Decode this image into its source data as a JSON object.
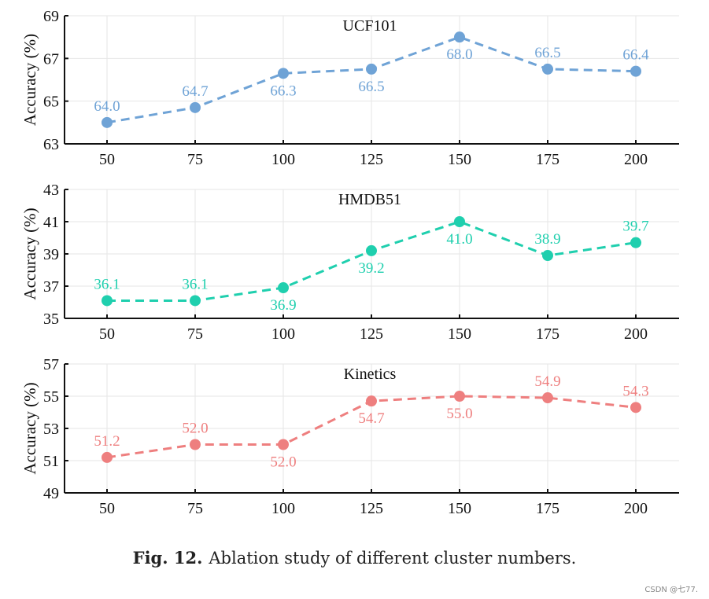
{
  "caption": {
    "label": "Fig. 12.",
    "text": "Ablation study of different cluster numbers."
  },
  "watermark": "CSDN @七77.",
  "chart_data": [
    {
      "type": "line",
      "title": "UCF101",
      "ylabel": "Accuracy (%)",
      "xlabel": "",
      "categories": [
        "50",
        "75",
        "100",
        "125",
        "150",
        "175",
        "200"
      ],
      "series": [
        {
          "name": "UCF101",
          "values": [
            64.0,
            64.7,
            66.3,
            66.5,
            68.0,
            66.5,
            66.4
          ]
        }
      ],
      "labels": [
        "64.0",
        "64.7",
        "66.3",
        "66.5",
        "68.0",
        "66.5",
        "66.4"
      ],
      "label_pos": [
        "above",
        "above",
        "below",
        "below",
        "below",
        "above",
        "above"
      ],
      "ylim": [
        63,
        69
      ],
      "yticks": [
        "63",
        "65",
        "67",
        "69"
      ],
      "color": "#6fa3d6",
      "grid": true
    },
    {
      "type": "line",
      "title": "HMDB51",
      "ylabel": "Accuracy (%)",
      "xlabel": "",
      "categories": [
        "50",
        "75",
        "100",
        "125",
        "150",
        "175",
        "200"
      ],
      "series": [
        {
          "name": "HMDB51",
          "values": [
            36.1,
            36.1,
            36.9,
            39.2,
            41.0,
            38.9,
            39.7
          ]
        }
      ],
      "labels": [
        "36.1",
        "36.1",
        "36.9",
        "39.2",
        "41.0",
        "38.9",
        "39.7"
      ],
      "label_pos": [
        "above",
        "above",
        "below",
        "below",
        "below",
        "above",
        "above"
      ],
      "ylim": [
        35,
        43
      ],
      "yticks": [
        "35",
        "37",
        "39",
        "41",
        "43"
      ],
      "color": "#1fcfae",
      "grid": true
    },
    {
      "type": "line",
      "title": "Kinetics",
      "ylabel": "Accuracy (%)",
      "xlabel": "",
      "categories": [
        "50",
        "75",
        "100",
        "125",
        "150",
        "175",
        "200"
      ],
      "series": [
        {
          "name": "Kinetics",
          "values": [
            51.2,
            52.0,
            52.0,
            54.7,
            55.0,
            54.9,
            54.3
          ]
        }
      ],
      "labels": [
        "51.2",
        "52.0",
        "52.0",
        "54.7",
        "55.0",
        "54.9",
        "54.3"
      ],
      "label_pos": [
        "above",
        "above",
        "below",
        "below",
        "below",
        "above",
        "above"
      ],
      "ylim": [
        49,
        57
      ],
      "yticks": [
        "49",
        "51",
        "53",
        "55",
        "57"
      ],
      "color": "#ee7f7f",
      "grid": true
    }
  ]
}
